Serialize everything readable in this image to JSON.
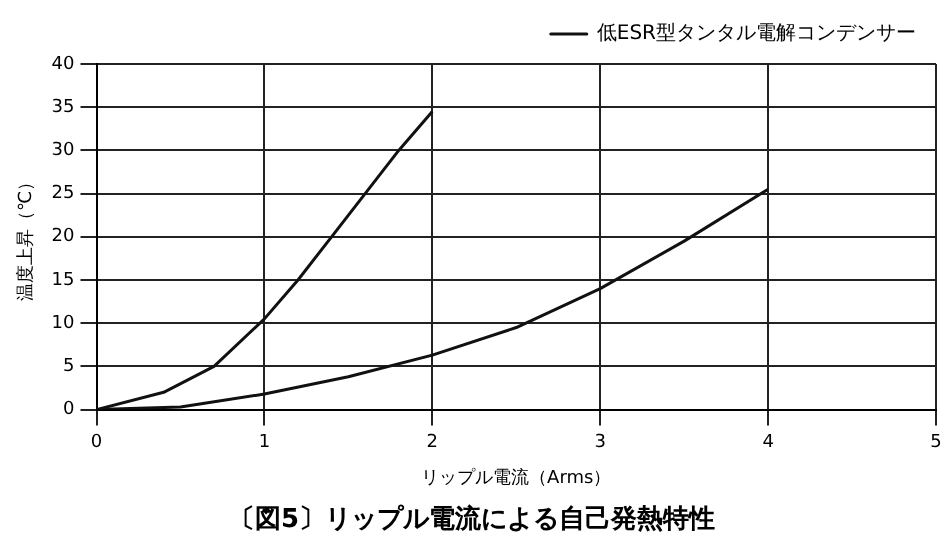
{
  "chart_data": {
    "type": "line",
    "title": "〔図5〕リップル電流による自己発熱特性",
    "xlabel": "リップル電流（Arms）",
    "ylabel": "温度上昇（℃）",
    "xlim": [
      0,
      5
    ],
    "xticks": [
      0,
      1,
      2,
      3,
      4,
      5
    ],
    "ylim": [
      0,
      40
    ],
    "yticks": [
      0,
      5,
      10,
      15,
      20,
      25,
      30,
      35,
      40
    ],
    "grid": true,
    "legend": "top right",
    "marker": "none",
    "line_style": "solid",
    "series": [
      {
        "color": "#111111",
        "x": [
          0,
          0.5,
          1,
          1.5,
          2,
          2.5,
          3,
          3.5,
          4
        ],
        "values": [
          0,
          0.3,
          1.8,
          3.8,
          6.3,
          9.5,
          14,
          19.5,
          25.5
        ]
      },
      {
        "name": "低ESR型タンタル電解コンデンサー",
        "color": "#111111",
        "x": [
          0,
          0.4,
          0.7,
          1,
          1.2,
          1.4,
          1.6,
          1.8,
          2
        ],
        "values": [
          0,
          2,
          5,
          10.5,
          15,
          20,
          25,
          30,
          34.5
        ]
      }
    ]
  }
}
